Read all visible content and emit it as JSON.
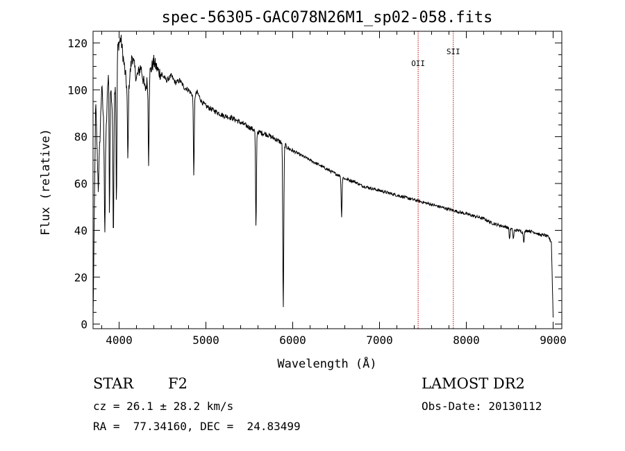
{
  "chart_data": {
    "type": "line",
    "title": "spec-56305-GAC078N26M1_sp02-058.fits",
    "xlabel": "Wavelength (Å)",
    "ylabel": "Flux (relative)",
    "xlim": [
      3700,
      9100
    ],
    "ylim": [
      -2,
      125
    ],
    "x_ticks": [
      4000,
      5000,
      6000,
      7000,
      8000,
      9000
    ],
    "y_ticks": [
      0,
      20,
      40,
      60,
      80,
      100,
      120
    ],
    "grid": false,
    "series": [
      {
        "name": "spectrum",
        "x": [
          3700,
          3730,
          3760,
          3800,
          3840,
          3880,
          3930,
          3980,
          4020,
          4060,
          4101,
          4150,
          4200,
          4250,
          4300,
          4340,
          4400,
          4450,
          4500,
          4550,
          4600,
          4650,
          4700,
          4750,
          4800,
          4861,
          4900,
          4950,
          5000,
          5100,
          5200,
          5300,
          5400,
          5500,
          5600,
          5700,
          5800,
          5890,
          5950,
          6000,
          6100,
          6200,
          6300,
          6400,
          6500,
          6563,
          6600,
          6700,
          6800,
          6900,
          7000,
          7100,
          7200,
          7300,
          7400,
          7500,
          7600,
          7700,
          7800,
          7900,
          8000,
          8100,
          8200,
          8300,
          8400,
          8500,
          8542,
          8600,
          8662,
          8700,
          8800,
          8850,
          8900,
          8950,
          8980,
          9000
        ],
        "y": [
          2,
          95,
          58,
          102,
          72,
          112,
          88,
          118,
          122,
          110,
          98,
          115,
          105,
          110,
          100,
          106,
          112,
          108,
          106,
          104,
          106,
          103,
          104,
          101,
          100,
          97,
          99,
          95,
          93,
          91,
          89,
          88,
          86,
          84,
          82,
          81,
          79,
          77,
          75,
          74,
          72,
          70,
          68,
          66,
          64,
          63,
          62,
          61,
          59,
          58,
          57,
          56,
          55,
          54,
          53,
          52,
          51,
          50,
          49,
          48,
          47,
          46,
          45,
          43,
          42,
          41,
          40,
          40,
          39,
          40,
          39,
          38,
          38,
          37,
          35,
          3
        ]
      }
    ],
    "absorption_lines": [
      {
        "x": 3835,
        "y": 38
      },
      {
        "x": 3889,
        "y": 45
      },
      {
        "x": 3934,
        "y": 36
      },
      {
        "x": 3970,
        "y": 48
      },
      {
        "x": 4101,
        "y": 68
      },
      {
        "x": 4340,
        "y": 68
      },
      {
        "x": 4861,
        "y": 62
      },
      {
        "x": 5577,
        "y": 38
      },
      {
        "x": 5890,
        "y": 15
      },
      {
        "x": 5896,
        "y": 55
      },
      {
        "x": 6563,
        "y": 45
      },
      {
        "x": 8498,
        "y": 36
      },
      {
        "x": 8542,
        "y": 36
      },
      {
        "x": 8662,
        "y": 35
      }
    ],
    "line_markers": [
      {
        "label": "OII",
        "x": 7445
      },
      {
        "label": "SII",
        "x": 7850
      }
    ],
    "marker_color": "#c00000"
  },
  "info": {
    "object_class": "STAR",
    "subclass": "F2",
    "cz": "cz = 26.1 ± 28.2 km/s",
    "coords": "RA =  77.34160, DEC =  24.83499",
    "survey": "LAMOST DR2",
    "obs_date": "Obs-Date: 20130112"
  }
}
